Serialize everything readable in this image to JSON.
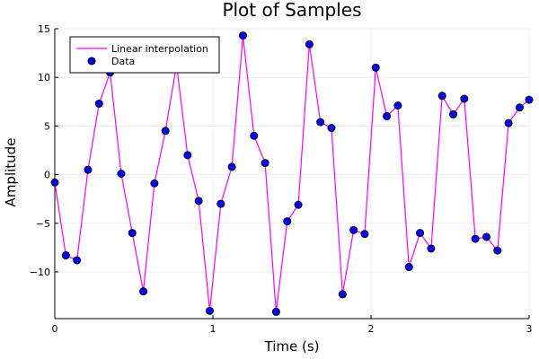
{
  "chart_data": {
    "type": "line",
    "title": "Plot of Samples",
    "xlabel": "Time (s)",
    "ylabel": "Amplitude",
    "xlim": [
      0,
      3
    ],
    "ylim": [
      -14.8,
      15
    ],
    "xticks": [
      0,
      1,
      2,
      3
    ],
    "yticks": [
      -10,
      -5,
      0,
      5,
      10,
      15
    ],
    "grid": true,
    "legend_position": "top-left",
    "x": [
      0.0,
      0.07,
      0.14,
      0.21,
      0.28,
      0.35,
      0.42,
      0.49,
      0.56,
      0.63,
      0.7,
      0.77,
      0.84,
      0.91,
      0.98,
      1.05,
      1.12,
      1.19,
      1.26,
      1.33,
      1.4,
      1.47,
      1.54,
      1.61,
      1.68,
      1.75,
      1.82,
      1.89,
      1.96,
      2.03,
      2.1,
      2.17,
      2.24,
      2.31,
      2.38,
      2.45,
      2.52,
      2.59,
      2.66,
      2.73,
      2.8,
      2.87,
      2.94,
      3.0
    ],
    "series": [
      {
        "name": "Linear interpolation",
        "kind": "line",
        "color": "#ff00ff",
        "values": [
          -0.8,
          -8.3,
          -8.8,
          0.5,
          7.3,
          10.5,
          0.1,
          -6.0,
          -12.0,
          -0.9,
          4.5,
          11.3,
          2.0,
          -2.7,
          -14.0,
          -3.0,
          0.8,
          14.3,
          4.0,
          1.2,
          -14.1,
          -4.8,
          -3.1,
          13.4,
          5.4,
          4.8,
          -12.3,
          -5.7,
          -6.1,
          11.0,
          6.0,
          7.1,
          -9.5,
          -6.0,
          -7.6,
          8.1,
          6.2,
          7.8,
          -6.6,
          -6.4,
          -7.8,
          5.3,
          6.9,
          7.7
        ]
      },
      {
        "name": "Data",
        "kind": "scatter",
        "color": "#0000ff",
        "values": [
          -0.8,
          -8.3,
          -8.8,
          0.5,
          7.3,
          10.5,
          0.1,
          -6.0,
          -12.0,
          -0.9,
          4.5,
          11.3,
          2.0,
          -2.7,
          -14.0,
          -3.0,
          0.8,
          14.3,
          4.0,
          1.2,
          -14.1,
          -4.8,
          -3.1,
          13.4,
          5.4,
          4.8,
          -12.3,
          -5.7,
          -6.1,
          11.0,
          6.0,
          7.1,
          -9.5,
          -6.0,
          -7.6,
          8.1,
          6.2,
          7.8,
          -6.6,
          -6.4,
          -7.8,
          5.3,
          6.9,
          7.7
        ]
      }
    ]
  }
}
